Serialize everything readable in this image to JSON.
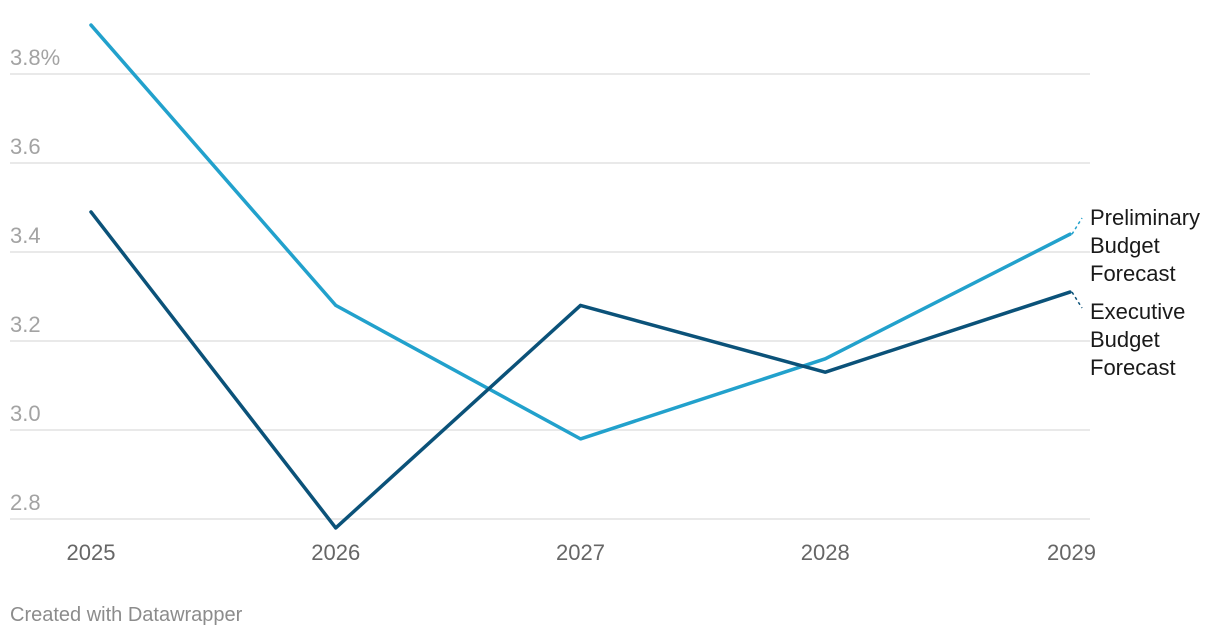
{
  "chart_data": {
    "type": "line",
    "title": "",
    "xlabel": "",
    "ylabel": "",
    "x": [
      "2025",
      "2026",
      "2027",
      "2028",
      "2029"
    ],
    "ylim": [
      2.8,
      3.8
    ],
    "yticks": [
      {
        "value": 3.8,
        "label": "3.8%"
      },
      {
        "value": 3.6,
        "label": "3.6"
      },
      {
        "value": 3.4,
        "label": "3.4"
      },
      {
        "value": 3.2,
        "label": "3.2"
      },
      {
        "value": 3.0,
        "label": "3.0"
      },
      {
        "value": 2.8,
        "label": "2.8"
      }
    ],
    "grid": true,
    "legend": "inline-right",
    "series": [
      {
        "name": "Preliminary Budget Forecast",
        "label_lines": [
          "Preliminary",
          "Budget",
          "Forecast"
        ],
        "color": "#22a1cc",
        "values": [
          3.91,
          3.28,
          2.98,
          3.16,
          3.44
        ]
      },
      {
        "name": "Executive Budget Forecast",
        "label_lines": [
          "Executive",
          "Budget",
          "Forecast"
        ],
        "color": "#0b5279",
        "values": [
          3.49,
          2.78,
          3.28,
          3.13,
          3.31
        ]
      }
    ]
  },
  "footer": {
    "credit": "Created with Datawrapper"
  }
}
